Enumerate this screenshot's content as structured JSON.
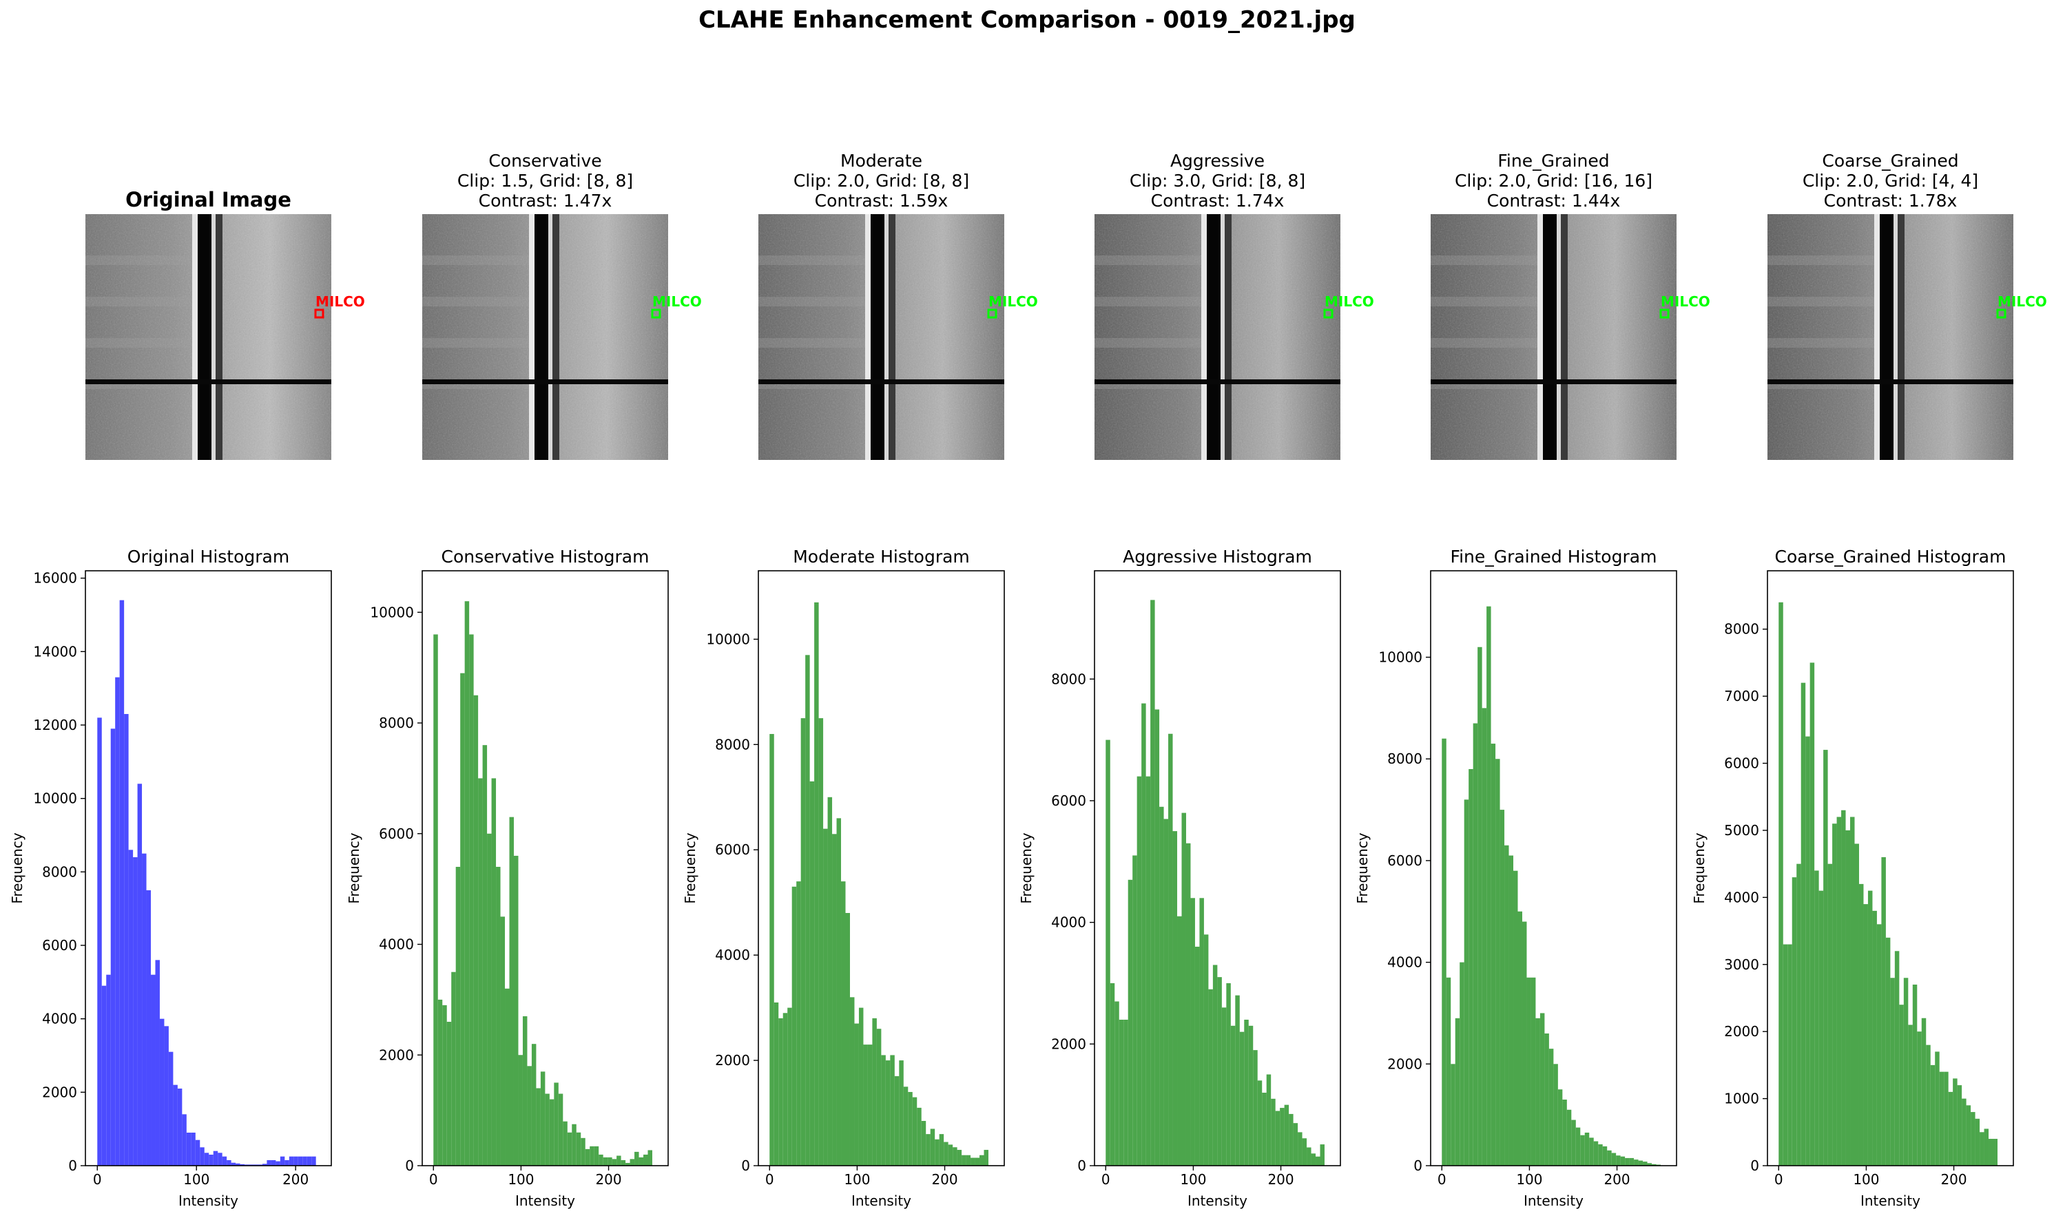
{
  "figure_title": "CLAHE Enhancement Comparison - 0019_2021.jpg",
  "images": [
    {
      "title_lines": [
        "Original Image"
      ],
      "bold": true,
      "annotation": "MILCO",
      "box_color": "#ff0000"
    },
    {
      "title_lines": [
        "Conservative",
        "Clip: 1.5, Grid: [8, 8]",
        "Contrast: 1.47x"
      ],
      "bold": false,
      "annotation": "MILCO",
      "box_color": "#00ff00"
    },
    {
      "title_lines": [
        "Moderate",
        "Clip: 2.0, Grid: [8, 8]",
        "Contrast: 1.59x"
      ],
      "bold": false,
      "annotation": "MILCO",
      "box_color": "#00ff00"
    },
    {
      "title_lines": [
        "Aggressive",
        "Clip: 3.0, Grid: [8, 8]",
        "Contrast: 1.74x"
      ],
      "bold": false,
      "annotation": "MILCO",
      "box_color": "#00ff00"
    },
    {
      "title_lines": [
        "Fine_Grained",
        "Clip: 2.0, Grid: [16, 16]",
        "Contrast: 1.44x"
      ],
      "bold": false,
      "annotation": "MILCO",
      "box_color": "#00ff00"
    },
    {
      "title_lines": [
        "Coarse_Grained",
        "Clip: 2.0, Grid: [4, 4]",
        "Contrast: 1.78x"
      ],
      "bold": false,
      "annotation": "MILCO",
      "box_color": "#00ff00"
    }
  ],
  "chart_data": [
    {
      "type": "bar",
      "title": "Original Histogram",
      "xlabel": "Intensity",
      "ylabel": "Frequency",
      "color": "#4c4cff",
      "xlim": [
        -12,
        236
      ],
      "ylim": [
        0,
        16200
      ],
      "xticks": [
        0,
        100,
        200
      ],
      "yticks": [
        0,
        2000,
        4000,
        6000,
        8000,
        10000,
        12000,
        14000,
        16000
      ],
      "bin_start": 0,
      "bin_width": 4.5,
      "values": [
        12200,
        4900,
        5200,
        11900,
        13300,
        15400,
        12300,
        8600,
        8400,
        10400,
        8500,
        7500,
        5200,
        5600,
        4000,
        3800,
        3100,
        2200,
        2100,
        1400,
        900,
        900,
        700,
        500,
        350,
        300,
        400,
        350,
        250,
        150,
        80,
        60,
        40,
        30,
        30,
        30,
        30,
        50,
        150,
        150,
        120,
        250,
        150,
        250,
        250,
        250,
        250,
        250,
        250
      ]
    },
    {
      "type": "bar",
      "title": "Conservative Histogram",
      "xlabel": "Intensity",
      "ylabel": "Frequency",
      "color": "#4ca64c",
      "xlim": [
        -12.8,
        268
      ],
      "ylim": [
        0,
        10750
      ],
      "xticks": [
        0,
        100,
        200
      ],
      "yticks": [
        0,
        2000,
        4000,
        6000,
        8000,
        10000
      ],
      "bin_start": 0,
      "bin_width": 5.1,
      "values": [
        9600,
        3000,
        2900,
        2600,
        3500,
        5400,
        8900,
        10200,
        9600,
        8500,
        7000,
        7600,
        6000,
        7000,
        5400,
        4500,
        3200,
        6300,
        5600,
        2000,
        2700,
        1800,
        2200,
        1400,
        1700,
        1300,
        1200,
        1500,
        1300,
        800,
        600,
        750,
        600,
        500,
        300,
        350,
        350,
        200,
        150,
        150,
        120,
        180,
        100,
        50,
        120,
        250,
        150,
        200,
        280
      ]
    },
    {
      "type": "bar",
      "title": "Moderate Histogram",
      "xlabel": "Intensity",
      "ylabel": "Frequency",
      "color": "#4ca64c",
      "xlim": [
        -12.8,
        268
      ],
      "ylim": [
        0,
        11300
      ],
      "xticks": [
        0,
        100,
        200
      ],
      "yticks": [
        0,
        2000,
        4000,
        6000,
        8000,
        10000
      ],
      "bin_start": 0,
      "bin_width": 5.1,
      "values": [
        8200,
        3100,
        2800,
        2900,
        3000,
        5300,
        5400,
        8500,
        9700,
        7300,
        10700,
        8500,
        6400,
        7000,
        6300,
        6600,
        5400,
        4800,
        3200,
        2700,
        3000,
        2300,
        2300,
        2800,
        2600,
        2100,
        2000,
        2100,
        1700,
        2000,
        1500,
        1400,
        1300,
        1100,
        850,
        600,
        700,
        500,
        600,
        450,
        400,
        350,
        300,
        200,
        200,
        150,
        150,
        200,
        300
      ]
    },
    {
      "type": "bar",
      "title": "Aggressive Histogram",
      "xlabel": "Intensity",
      "ylabel": "Frequency",
      "color": "#4ca64c",
      "xlim": [
        -12.8,
        268
      ],
      "ylim": [
        0,
        9780
      ],
      "xticks": [
        0,
        100,
        200
      ],
      "yticks": [
        0,
        2000,
        4000,
        6000,
        8000
      ],
      "bin_start": 0,
      "bin_width": 5.1,
      "values": [
        7000,
        3000,
        2700,
        2400,
        2400,
        4700,
        5100,
        6400,
        7600,
        6400,
        9300,
        7500,
        5900,
        5700,
        7100,
        5500,
        4100,
        5800,
        5300,
        4400,
        3600,
        4400,
        3800,
        2900,
        3300,
        3100,
        2600,
        3000,
        2300,
        2800,
        2200,
        2400,
        2300,
        1900,
        1400,
        1200,
        1500,
        1100,
        900,
        950,
        1000,
        850,
        700,
        550,
        450,
        300,
        200,
        150,
        350
      ]
    },
    {
      "type": "bar",
      "title": "Fine_Grained Histogram",
      "xlabel": "Intensity",
      "ylabel": "Frequency",
      "color": "#4ca64c",
      "xlim": [
        -12.8,
        268
      ],
      "ylim": [
        0,
        11700
      ],
      "xticks": [
        0,
        100,
        200
      ],
      "yticks": [
        0,
        2000,
        4000,
        6000,
        8000,
        10000
      ],
      "bin_start": 0,
      "bin_width": 5.1,
      "values": [
        8400,
        3700,
        2000,
        2900,
        4000,
        7200,
        7800,
        8700,
        10200,
        9000,
        11000,
        8300,
        8000,
        7000,
        6300,
        6100,
        5800,
        5000,
        4800,
        3700,
        3700,
        2900,
        3000,
        2600,
        2300,
        2000,
        1500,
        1300,
        1100,
        900,
        750,
        600,
        650,
        550,
        480,
        420,
        380,
        300,
        250,
        200,
        180,
        150,
        150,
        120,
        100,
        80,
        50,
        30,
        20
      ]
    },
    {
      "type": "bar",
      "title": "Coarse_Grained Histogram",
      "xlabel": "Intensity",
      "ylabel": "Frequency",
      "color": "#4ca64c",
      "xlim": [
        -12.8,
        268
      ],
      "ylim": [
        0,
        8870
      ],
      "xticks": [
        0,
        100,
        200
      ],
      "yticks": [
        0,
        1000,
        2000,
        3000,
        4000,
        5000,
        6000,
        7000,
        8000
      ],
      "bin_start": 0,
      "bin_width": 5.1,
      "values": [
        8400,
        3300,
        3300,
        4300,
        4500,
        7200,
        6400,
        7500,
        4400,
        4100,
        6200,
        4500,
        5100,
        5200,
        5300,
        5000,
        5200,
        4800,
        4200,
        3900,
        4100,
        3800,
        3600,
        4600,
        3400,
        2800,
        3200,
        2400,
        2800,
        2100,
        2700,
        2000,
        2200,
        1800,
        1500,
        1700,
        1400,
        1400,
        1100,
        1300,
        1200,
        1000,
        900,
        800,
        700,
        500,
        550,
        400,
        400
      ]
    }
  ]
}
